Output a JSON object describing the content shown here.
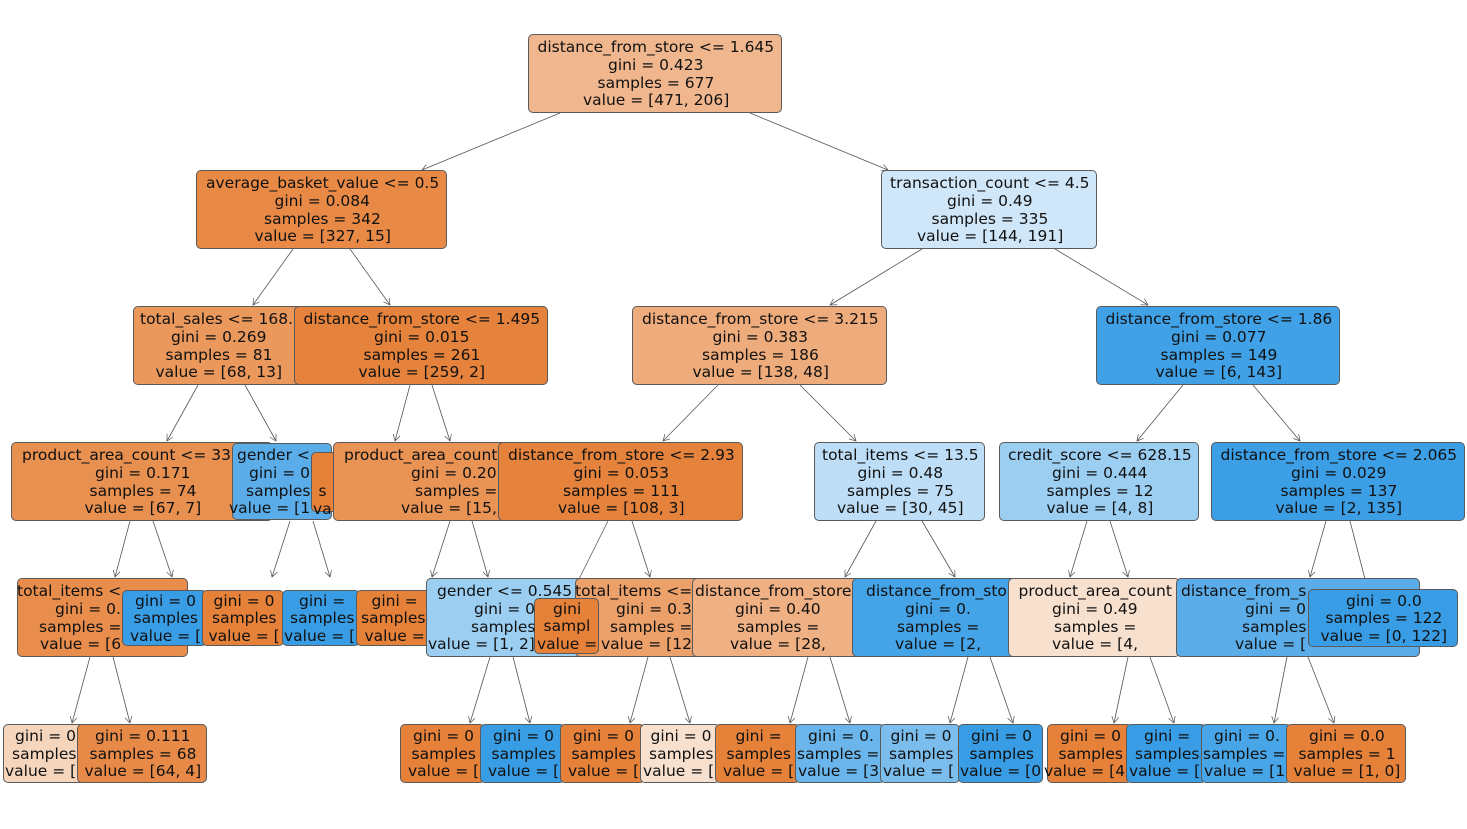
{
  "tree": {
    "nodes": [
      {
        "color": "#f0b78e",
        "lines": [
          "distance_from_store <= 1.645",
          "gini = 0.423",
          "samples = 677",
          "value = [471, 206]"
        ]
      },
      {
        "color": "#e88a46",
        "lines": [
          "average_basket_value <= 0.5",
          "gini = 0.084",
          "samples = 342",
          "value = [327, 15]"
        ]
      },
      {
        "color": "#d0e7f9",
        "lines": [
          "transaction_count <= 4.5",
          "gini = 0.49",
          "samples = 335",
          "value = [144, 191]"
        ]
      },
      {
        "color": "#ea985c",
        "lines": [
          "total_sales <= 168.",
          "gini = 0.269",
          "samples = 81",
          "value = [68, 13]"
        ]
      },
      {
        "color": "#e5823b",
        "lines": [
          "distance_from_store <= 1.495",
          "gini = 0.015",
          "samples = 261",
          "value = [259, 2]"
        ]
      },
      {
        "color": "#eeab7b",
        "lines": [
          "distance_from_store <= 3.215",
          "gini = 0.383",
          "samples = 186",
          "value = [138, 48]"
        ]
      },
      {
        "color": "#41a1e6",
        "lines": [
          "distance_from_store <= 1.86",
          "gini = 0.077",
          "samples = 149",
          "value = [6, 143]"
        ]
      },
      {
        "color": "#e89050",
        "lines": [
          "product_area_count <= 33",
          "gini = 0.171",
          "samples = 74",
          "value = [67, 7]"
        ]
      },
      {
        "color": "#5aade9",
        "lines": [
          "gender <",
          "gini = 0",
          "samples",
          "value = [1"
        ]
      },
      {
        "color": "#e58139",
        "lines": [
          "",
          "",
          "s",
          "va"
        ]
      },
      {
        "color": "#e99355",
        "lines": [
          "product_area_count",
          "gini = 0.20",
          "samples =",
          "value = [15,"
        ]
      },
      {
        "color": "#e5833d",
        "lines": [
          "distance_from_store <= 2.93",
          "gini = 0.053",
          "samples = 111",
          "value = [108, 3]"
        ]
      },
      {
        "color": "#bddef6",
        "lines": [
          "total_items <= 13.5",
          "gini = 0.48",
          "samples = 75",
          "value = [30, 45]"
        ]
      },
      {
        "color": "#9ccef2",
        "lines": [
          "credit_score <= 628.15",
          "gini = 0.444",
          "samples = 12",
          "value = [4, 8]"
        ]
      },
      {
        "color": "#3c9ee5",
        "lines": [
          "distance_from_store <= 2.065",
          "gini = 0.029",
          "samples = 137",
          "value = [2, 135]"
        ]
      },
      {
        "color": "#e88d4c",
        "lines": [
          "total_items <",
          "gini = 0.",
          "samples =",
          "value = [6"
        ]
      },
      {
        "color": "#399de5",
        "lines": [
          "gini = 0",
          "samples",
          "value = ["
        ]
      },
      {
        "color": "#e58139",
        "lines": [
          "gini = 0",
          "samples",
          "value = ["
        ]
      },
      {
        "color": "#399de5",
        "lines": [
          "gini =",
          "samples",
          "value = ["
        ]
      },
      {
        "color": "#e58139",
        "lines": [
          "gini =",
          "samples",
          "value ="
        ]
      },
      {
        "color": "#9ccef2",
        "lines": [
          "gender <= 0.545",
          "gini = 0",
          "samples",
          "value = [1, 2]"
        ]
      },
      {
        "color": "#e58139",
        "lines": [
          "gini",
          "sampl",
          "value ="
        ]
      },
      {
        "color": "#eca06a",
        "lines": [
          "total_items <=",
          "gini = 0.3",
          "samples =",
          "value = [12"
        ]
      },
      {
        "color": "#efb083",
        "lines": [
          "distance_from_store",
          "gini = 0.40",
          "samples =",
          "value = [28,"
        ]
      },
      {
        "color": "#45a3e7",
        "lines": [
          "distance_from_sto",
          "gini = 0.",
          "samples =",
          "value = [2,"
        ]
      },
      {
        "color": "#f8e0ce",
        "lines": [
          "product_area_count",
          "gini = 0.49",
          "samples =",
          "value = [4,"
        ]
      },
      {
        "color": "#5aade9",
        "lines": [
          "distance_from_s",
          "gini = 0",
          "samples",
          "value = ["
        ]
      },
      {
        "color": "#399de5",
        "lines": [
          "gini = 0.0",
          "samples = 122",
          "value = [0, 122]"
        ]
      },
      {
        "color": "#f6d5bd",
        "lines": [
          "gini = 0",
          "samples",
          "value = ["
        ]
      },
      {
        "color": "#e88a47",
        "lines": [
          "gini = 0.111",
          "samples = 68",
          "value = [64, 4]"
        ]
      },
      {
        "color": "#e58139",
        "lines": [
          "gini = 0",
          "samples",
          "value = ["
        ]
      },
      {
        "color": "#399de5",
        "lines": [
          "gini = 0",
          "samples",
          "value = ["
        ]
      },
      {
        "color": "#e58139",
        "lines": [
          "gini = 0",
          "samples",
          "value = ["
        ]
      },
      {
        "color": "#f8e0ce",
        "lines": [
          "gini = 0",
          "samples",
          "value = ["
        ]
      },
      {
        "color": "#e58139",
        "lines": [
          "gini =",
          "samples",
          "value = ["
        ]
      },
      {
        "color": "#6ab6ec",
        "lines": [
          "gini = 0.",
          "samples =",
          "value = [3"
        ]
      },
      {
        "color": "#7bbeee",
        "lines": [
          "gini = 0",
          "samples",
          "value = ["
        ]
      },
      {
        "color": "#399de5",
        "lines": [
          "gini = 0",
          "samples",
          "value = [0"
        ]
      },
      {
        "color": "#e58139",
        "lines": [
          "gini = 0",
          "samples",
          "value = [4"
        ]
      },
      {
        "color": "#399de5",
        "lines": [
          "gini =",
          "samples",
          "value = ["
        ]
      },
      {
        "color": "#48a5e7",
        "lines": [
          "gini = 0.",
          "samples =",
          "value = [1"
        ]
      },
      {
        "color": "#e58139",
        "lines": [
          "gini = 0.0",
          "samples = 1",
          "value = [1, 0]"
        ]
      }
    ]
  }
}
